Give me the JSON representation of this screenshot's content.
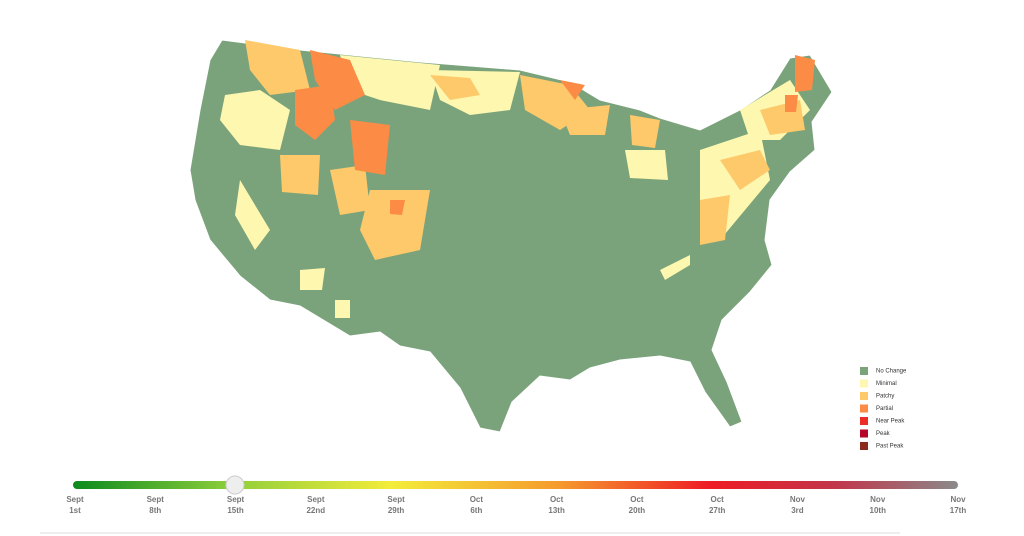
{
  "legend": {
    "items": [
      {
        "label": "No Change",
        "color": "#7ba37b"
      },
      {
        "label": "Minimal",
        "color": "#fdf7b0"
      },
      {
        "label": "Patchy",
        "color": "#fdc96a"
      },
      {
        "label": "Partial",
        "color": "#fb8b45"
      },
      {
        "label": "Near Peak",
        "color": "#ed2d27"
      },
      {
        "label": "Peak",
        "color": "#b5062a"
      },
      {
        "label": "Past Peak",
        "color": "#8c2a1c"
      }
    ]
  },
  "timeline": {
    "dates": [
      {
        "month": "Sept",
        "day": "1st"
      },
      {
        "month": "Sept",
        "day": "8th"
      },
      {
        "month": "Sept",
        "day": "15th"
      },
      {
        "month": "Sept",
        "day": "22nd"
      },
      {
        "month": "Sept",
        "day": "29th"
      },
      {
        "month": "Oct",
        "day": "6th"
      },
      {
        "month": "Oct",
        "day": "13th"
      },
      {
        "month": "Oct",
        "day": "20th"
      },
      {
        "month": "Oct",
        "day": "27th"
      },
      {
        "month": "Nov",
        "day": "3rd"
      },
      {
        "month": "Nov",
        "day": "10th"
      },
      {
        "month": "Nov",
        "day": "17th"
      }
    ]
  }
}
